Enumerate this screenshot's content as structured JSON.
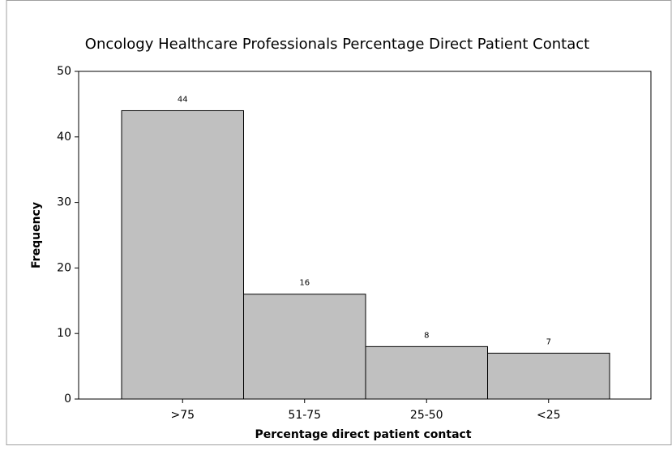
{
  "chart_data": {
    "type": "bar",
    "title": "Oncology Healthcare Professionals Percentage Direct Patient Contact",
    "x_label": "Percentage direct patient contact",
    "y_label": "Frequency",
    "categories": [
      ">75",
      "51-75",
      "25-50",
      "<25"
    ],
    "values": [
      44,
      16,
      8,
      7
    ],
    "color": "#c0c0c0",
    "ylim": [
      0,
      50
    ],
    "yticks": [
      0,
      10,
      20,
      30,
      40,
      50
    ],
    "grid": false
  }
}
